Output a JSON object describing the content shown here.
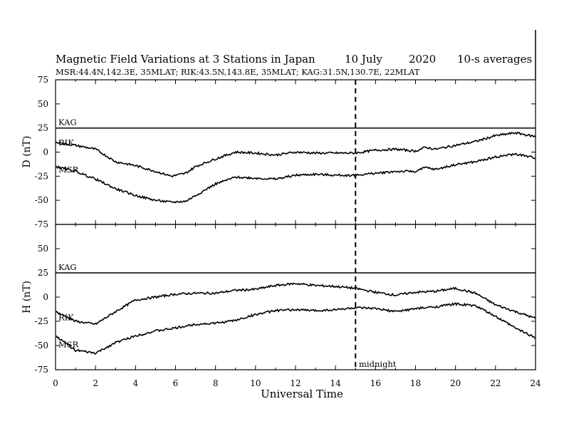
{
  "chart_data": {
    "type": "line",
    "title": {
      "main": "Magnetic Field Variations at 3 Stations in Japan",
      "date": "10 July",
      "year": "2020",
      "averaging": "10-s averages"
    },
    "subtitle": "MSR:44.4N,142.3E, 35MLAT;  RIK:43.5N,143.8E, 35MLAT;  KAG:31.5N,130.7E, 22MLAT",
    "xlabel": "Universal Time",
    "xlim": [
      0,
      24
    ],
    "x_ticks": [
      "0",
      "2",
      "4",
      "6",
      "8",
      "10",
      "12",
      "14",
      "16",
      "18",
      "20",
      "22",
      "24"
    ],
    "y_ticks": [
      "75",
      "50",
      "25",
      "0",
      "-25",
      "-50",
      "-75"
    ],
    "annotation": {
      "x": 15,
      "label": "midnight",
      "style": "dashed"
    },
    "panels": [
      {
        "component": "D",
        "ylabel": "D (nT)",
        "ylim": [
          -75,
          75
        ],
        "series": [
          {
            "name": "KAG",
            "x": [
              0,
              24
            ],
            "y": [
              25,
              25
            ]
          },
          {
            "name": "RIK",
            "x": [
              0,
              1,
              2,
              3,
              4,
              5,
              5.8,
              6.5,
              7,
              8,
              9,
              10,
              11,
              12,
              13,
              14,
              15,
              16,
              17,
              18,
              18.5,
              19,
              20,
              21,
              22,
              23,
              24
            ],
            "y": [
              10,
              7,
              3,
              -10,
              -14,
              -20,
              -25,
              -22,
              -15,
              -7,
              0,
              -1,
              -3,
              0,
              -1,
              -1,
              -1,
              2,
              3,
              1,
              5,
              3,
              7,
              11,
              17,
              20,
              16
            ]
          },
          {
            "name": "MSR",
            "x": [
              0,
              1,
              2,
              3,
              4,
              5,
              5.8,
              6.5,
              7,
              8,
              9,
              10,
              11,
              12,
              13,
              14,
              15,
              16,
              17,
              18,
              18.5,
              19,
              20,
              21,
              22,
              23,
              24
            ],
            "y": [
              -15,
              -20,
              -28,
              -38,
              -45,
              -50,
              -52,
              -51,
              -45,
              -33,
              -26,
              -27,
              -28,
              -24,
              -23,
              -24,
              -24,
              -22,
              -20,
              -20,
              -16,
              -18,
              -13,
              -10,
              -5,
              -2,
              -6
            ]
          }
        ]
      },
      {
        "component": "H",
        "ylabel": "H (nT)",
        "ylim": [
          -75,
          75
        ],
        "series": [
          {
            "name": "KAG",
            "x": [
              0,
              24
            ],
            "y": [
              25,
              25
            ]
          },
          {
            "name": "RIK",
            "x": [
              0,
              1,
              2,
              3,
              4,
              5,
              6,
              7,
              8,
              9,
              10,
              11,
              12,
              13,
              14,
              15,
              16,
              17,
              18,
              19,
              20,
              21,
              22,
              23,
              24
            ],
            "y": [
              -15,
              -25,
              -28,
              -15,
              -3,
              0,
              3,
              4,
              4,
              7,
              8,
              12,
              14,
              12,
              11,
              9,
              5,
              2,
              5,
              6,
              9,
              4,
              -8,
              -15,
              -22
            ]
          },
          {
            "name": "MSR",
            "x": [
              0,
              1,
              2,
              3,
              4,
              5,
              6,
              7,
              8,
              9,
              10,
              11,
              12,
              13,
              14,
              15,
              16,
              17,
              18,
              19,
              20,
              21,
              22,
              23,
              24
            ],
            "y": [
              -40,
              -55,
              -58,
              -47,
              -40,
              -35,
              -32,
              -28,
              -27,
              -24,
              -18,
              -14,
              -13,
              -14,
              -13,
              -11,
              -12,
              -15,
              -12,
              -10,
              -7,
              -9,
              -20,
              -32,
              -42
            ]
          }
        ]
      }
    ]
  }
}
